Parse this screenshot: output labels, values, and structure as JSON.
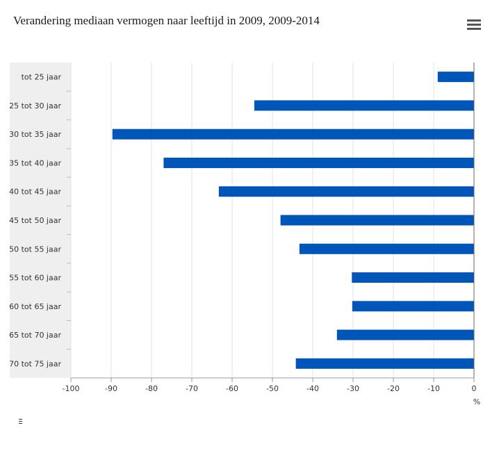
{
  "chart_data": {
    "type": "bar",
    "orientation": "horizontal",
    "title": "Verandering mediaan vermogen naar leeftijd in 2009, 2009-2014",
    "categories": [
      "tot 25 jaar",
      "25 tot 30 jaar",
      "30 tot 35 jaar",
      "35 tot 40 jaar",
      "40 tot 45 jaar",
      "45 tot 50 jaar",
      "50 tot 55 jaar",
      "55 tot 60 jaar",
      "60 tot 65 jaar",
      "65 tot 70 jaar",
      "70 tot 75 jaar"
    ],
    "values": [
      -9,
      -54.5,
      -89.7,
      -77,
      -63.3,
      -48,
      -43.3,
      -30.3,
      -30.2,
      -34,
      -44.2
    ],
    "xlim": [
      -100,
      0
    ],
    "xticks": [
      -100,
      -90,
      -80,
      -70,
      -60,
      -50,
      -40,
      -30,
      -20,
      -10,
      0
    ],
    "xticklabels": [
      "-100",
      "-90",
      "-80",
      "-70",
      "-60",
      "-50",
      "-40",
      "-30",
      "-20",
      "-10",
      "0"
    ],
    "xlabel": "%",
    "grid": true,
    "bar_color": "#0056b8"
  }
}
